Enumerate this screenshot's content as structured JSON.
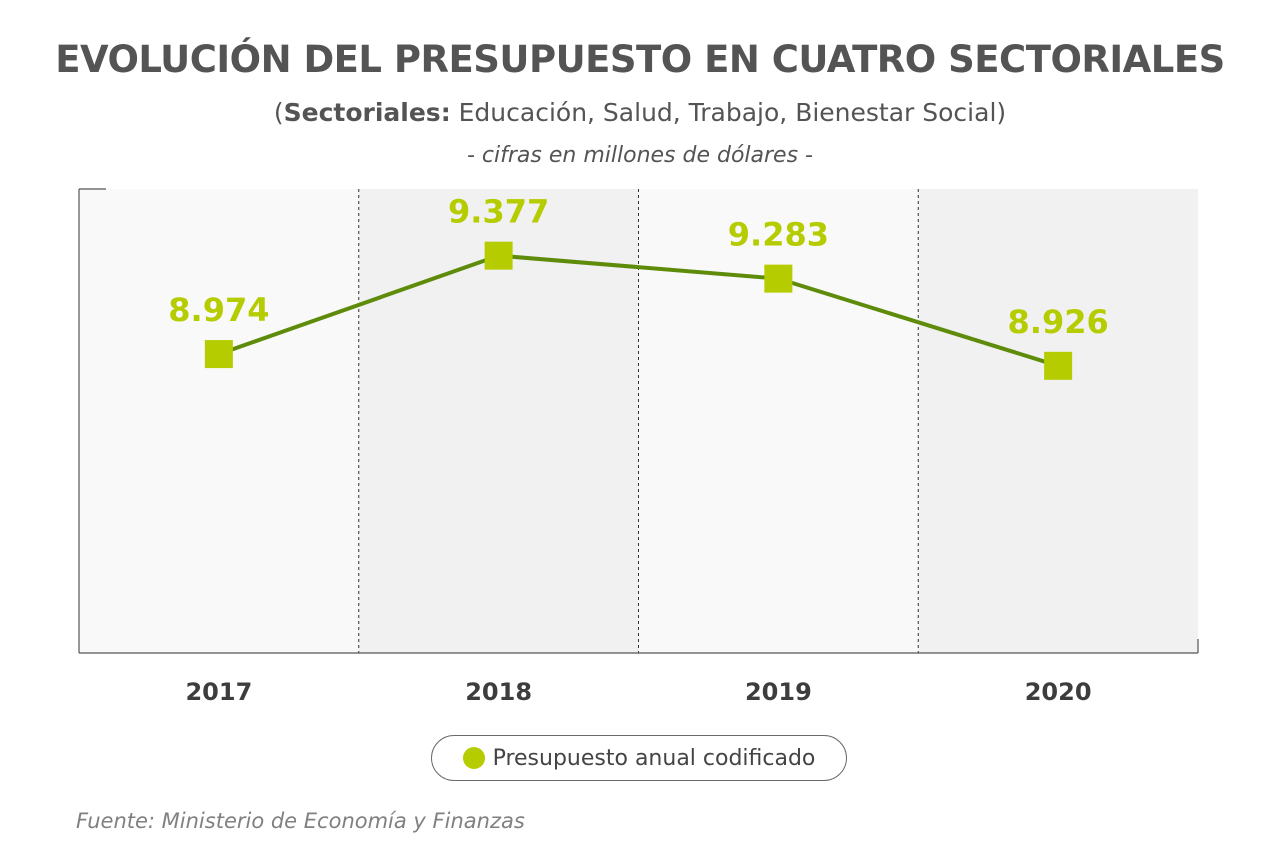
{
  "header": {
    "title": "EVOLUCIÓN DEL PRESUPUESTO EN CUATRO SECTORIALES",
    "subtitle_open": "(",
    "subtitle_bold": "Sectoriales:",
    "subtitle_rest": " Educación, Salud, Trabajo, Bienestar Social)",
    "units": "- cifras en millones de dólares -"
  },
  "chart_data": {
    "type": "line",
    "categories": [
      "2017",
      "2018",
      "2019",
      "2020"
    ],
    "series": [
      {
        "name": "Presupuesto anual codificado",
        "values": [
          8974,
          9377,
          9283,
          8926
        ],
        "value_labels": [
          "8.974",
          "9.377",
          "9.283",
          "8.926"
        ],
        "color": "#b5cc00",
        "line_color": "#5e8c0a"
      }
    ],
    "ylim": [
      7750,
      9650
    ],
    "grid": false,
    "band_colors": [
      "#f9f9f9",
      "#f1f1f1"
    ],
    "legend_position": "bottom-center"
  },
  "legend": {
    "label": "Presupuesto anual codificado"
  },
  "footer": {
    "source": "Fuente: Ministerio de Economía y Finanzas"
  }
}
